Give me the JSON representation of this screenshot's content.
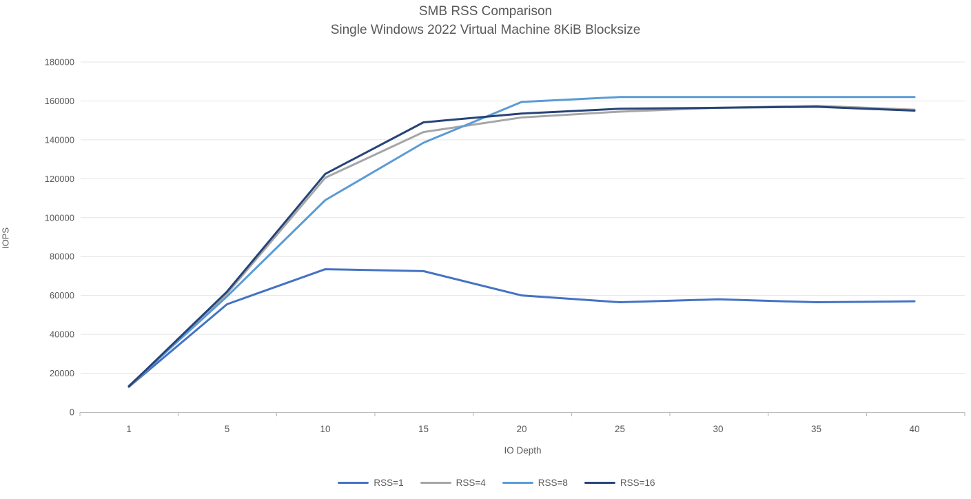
{
  "chart_data": {
    "type": "line",
    "title": "SMB RSS Comparison",
    "subtitle": "Single Windows 2022 Virtual Machine 8KiB Blocksize",
    "xlabel": "IO Depth",
    "ylabel": "IOPS",
    "x_categories": [
      1,
      5,
      10,
      15,
      20,
      25,
      30,
      35,
      40
    ],
    "y_ticks": [
      0,
      20000,
      40000,
      60000,
      80000,
      100000,
      120000,
      140000,
      160000,
      180000
    ],
    "ylim": [
      0,
      180000
    ],
    "grid": "horizontal-major",
    "legend_position": "bottom-center",
    "series": [
      {
        "name": "RSS=1",
        "color": "#4472C4",
        "values": [
          13000,
          55500,
          73500,
          72500,
          60000,
          56500,
          58000,
          56500,
          57000
        ]
      },
      {
        "name": "RSS=4",
        "color": "#A6A6A6",
        "values": [
          13000,
          61000,
          120500,
          144000,
          151500,
          154500,
          156500,
          157500,
          155500
        ]
      },
      {
        "name": "RSS=8",
        "color": "#5B9BD5",
        "values": [
          13500,
          59500,
          109000,
          138500,
          159500,
          162000,
          162000,
          162000,
          162000
        ]
      },
      {
        "name": "RSS=16",
        "color": "#264478",
        "values": [
          13200,
          62000,
          122500,
          149000,
          153500,
          156000,
          156500,
          157000,
          155000
        ]
      }
    ],
    "style_colors": {
      "text": "#595959",
      "gridline": "#E4E4E4",
      "axis_line": "#BDBDBD"
    }
  }
}
